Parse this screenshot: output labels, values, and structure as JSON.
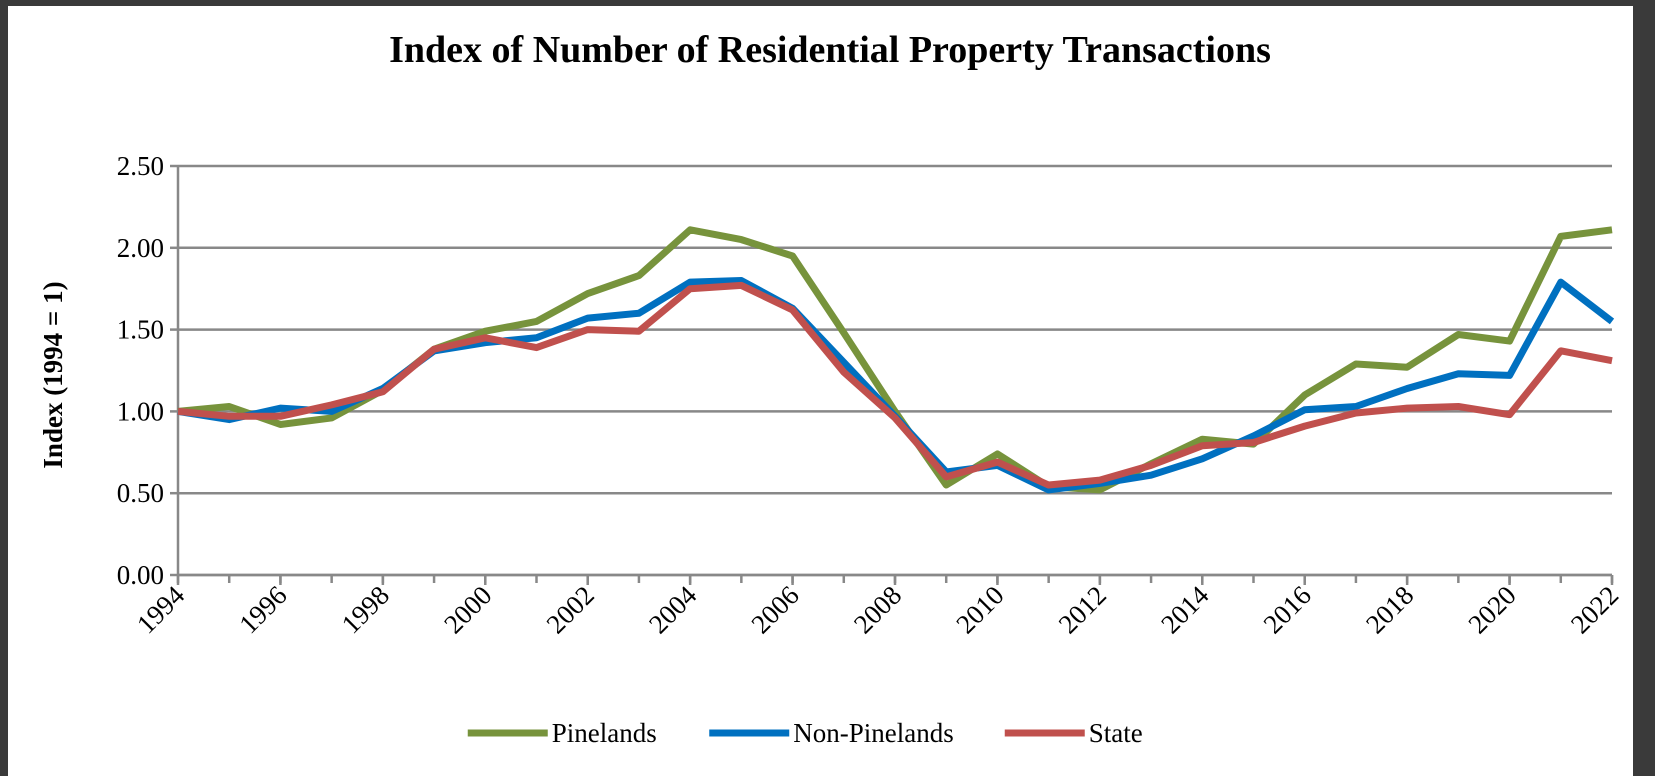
{
  "chart_data": {
    "type": "line",
    "title": "Index of Number of Residential Property Transactions",
    "y_label": "Index (1994 = 1)",
    "x": [
      1994,
      1995,
      1996,
      1997,
      1998,
      1999,
      2000,
      2001,
      2002,
      2003,
      2004,
      2005,
      2006,
      2007,
      2008,
      2009,
      2010,
      2011,
      2012,
      2013,
      2014,
      2015,
      2016,
      2017,
      2018,
      2019,
      2020,
      2021,
      2022
    ],
    "series": [
      {
        "name": "Pinelands",
        "color": "#77933c",
        "values": [
          1.0,
          1.03,
          0.92,
          0.96,
          1.13,
          1.38,
          1.49,
          1.55,
          1.72,
          1.83,
          2.11,
          2.05,
          1.95,
          1.48,
          1.0,
          0.55,
          0.74,
          0.54,
          0.52,
          0.68,
          0.83,
          0.8,
          1.1,
          1.29,
          1.27,
          1.47,
          1.43,
          2.07,
          2.11
        ]
      },
      {
        "name": "Non-Pinelands",
        "color": "#0070c0",
        "values": [
          1.0,
          0.95,
          1.02,
          1.0,
          1.14,
          1.37,
          1.42,
          1.45,
          1.57,
          1.6,
          1.79,
          1.8,
          1.63,
          1.3,
          0.97,
          0.63,
          0.67,
          0.52,
          0.56,
          0.61,
          0.71,
          0.85,
          1.01,
          1.03,
          1.14,
          1.23,
          1.22,
          1.79,
          1.55
        ]
      },
      {
        "name": "State",
        "color": "#c0504d",
        "values": [
          1.0,
          0.97,
          0.97,
          1.04,
          1.12,
          1.38,
          1.45,
          1.39,
          1.5,
          1.49,
          1.75,
          1.77,
          1.62,
          1.24,
          0.96,
          0.6,
          0.69,
          0.55,
          0.58,
          0.67,
          0.79,
          0.81,
          0.91,
          0.99,
          1.02,
          1.03,
          0.98,
          1.37,
          1.31
        ]
      }
    ],
    "xlim": [
      1994,
      2022
    ],
    "xticks": [
      1994,
      1996,
      1998,
      2000,
      2002,
      2004,
      2006,
      2008,
      2010,
      2012,
      2014,
      2016,
      2018,
      2020,
      2022
    ],
    "ylim": [
      0,
      2.5
    ],
    "yticks": [
      {
        "value": 0,
        "label": "0.00"
      },
      {
        "value": 0.5,
        "label": "0.50"
      },
      {
        "value": 1,
        "label": "1.00"
      },
      {
        "value": 1.5,
        "label": "1.50"
      },
      {
        "value": 2,
        "label": "2.00"
      },
      {
        "value": 2.5,
        "label": "2.50"
      }
    ],
    "grid": true,
    "legend": "bottom"
  }
}
